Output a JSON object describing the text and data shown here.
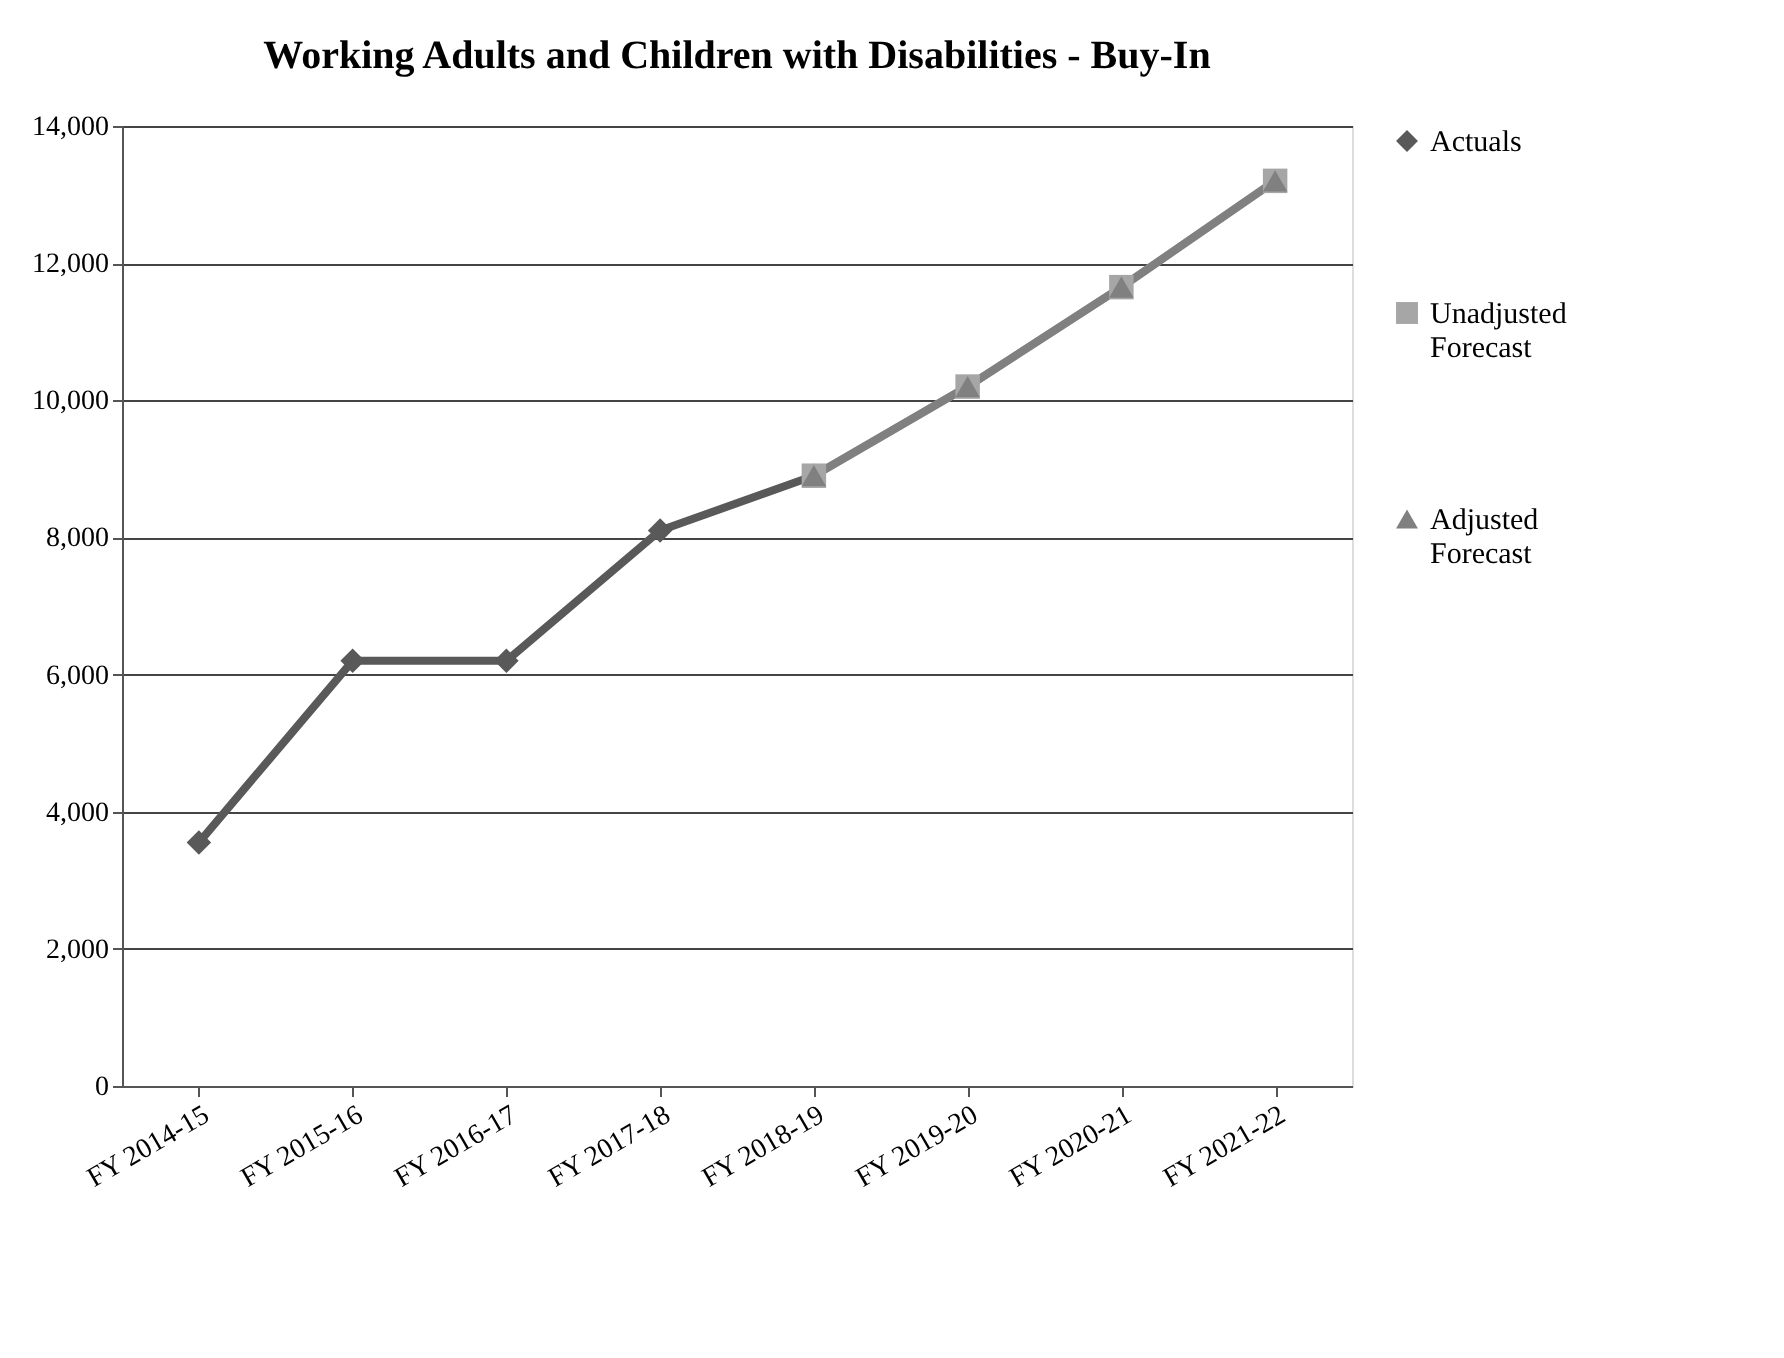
{
  "chart_data": {
    "type": "line",
    "title": "Working Adults and Children with Disabilities - Buy-In",
    "categories": [
      "FY 2014-15",
      "FY 2015-16",
      "FY 2016-17",
      "FY 2017-18",
      "FY 2018-19",
      "FY 2019-20",
      "FY 2020-21",
      "FY 2021-22"
    ],
    "series": [
      {
        "name": "Actuals",
        "color": "#595959",
        "marker": "diamond",
        "values": [
          3550,
          6200,
          6200,
          8100,
          8900,
          null,
          null,
          null
        ]
      },
      {
        "name": "Unadjusted Forecast",
        "color": "#a6a6a6",
        "marker": "square",
        "values": [
          null,
          null,
          null,
          null,
          8900,
          10200,
          11650,
          13200
        ]
      },
      {
        "name": "Adjusted Forecast",
        "color": "#808080",
        "marker": "triangle",
        "values": [
          null,
          null,
          null,
          null,
          8900,
          10200,
          11650,
          13200
        ]
      }
    ],
    "ylim": [
      0,
      14000
    ],
    "yticks": [
      0,
      {
        "value": 2000,
        "label": "2,000"
      },
      {
        "value": 4000,
        "label": "4,000"
      },
      {
        "value": 6000,
        "label": "6,000"
      },
      {
        "value": 8000,
        "label": "8,000"
      },
      {
        "value": 10000,
        "label": "10,000"
      },
      {
        "value": 12000,
        "label": "12,000"
      },
      {
        "value": 14000,
        "label": "14,000"
      }
    ],
    "grid": "y",
    "legend": "right",
    "line_style": "solid"
  }
}
